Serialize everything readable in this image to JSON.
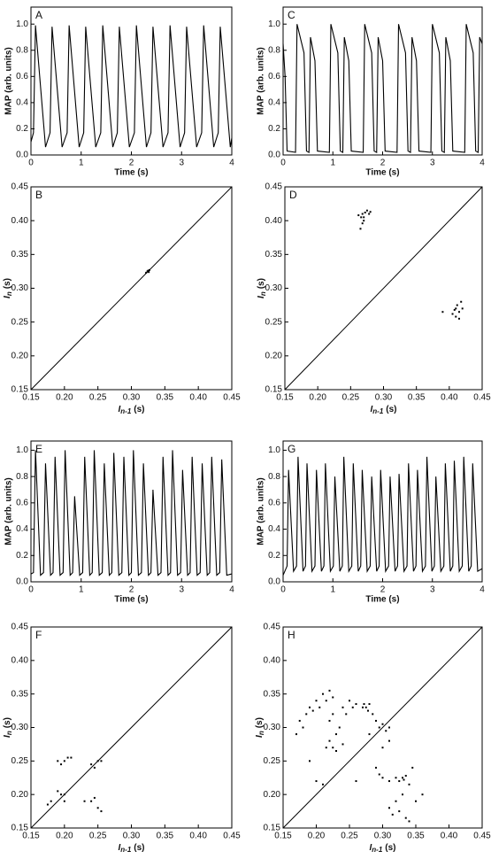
{
  "chart_data": [
    {
      "type": "line",
      "label": "A",
      "xlabel": "Time (s)",
      "ylabel": "MAP (arb. units)",
      "color": "#000000",
      "xlim": [
        0,
        4
      ],
      "ylim": [
        0,
        1.13
      ],
      "xticks": [
        0,
        1,
        2,
        3,
        4
      ],
      "yticks": [
        {
          "value": 0,
          "label": "0.0"
        },
        {
          "value": 0.2,
          "label": "0.2"
        },
        {
          "value": 0.4,
          "label": "0.4"
        },
        {
          "value": 0.6,
          "label": "0.6"
        },
        {
          "value": 0.8,
          "label": "0.8"
        },
        {
          "value": 1,
          "label": "1.0"
        }
      ],
      "x": [
        0,
        0.05,
        0.09,
        0.29,
        0.38,
        0.42,
        0.62,
        0.72,
        0.76,
        0.96,
        1.05,
        1.09,
        1.29,
        1.39,
        1.43,
        1.63,
        1.72,
        1.76,
        1.96,
        2.06,
        2.1,
        2.3,
        2.39,
        2.43,
        2.63,
        2.73,
        2.77,
        2.97,
        3.06,
        3.1,
        3.3,
        3.4,
        3.44,
        3.64,
        3.73,
        3.77,
        3.97,
        4.0
      ],
      "values": [
        0.1,
        0.17,
        0.99,
        0.06,
        0.17,
        0.98,
        0.06,
        0.17,
        0.99,
        0.06,
        0.17,
        0.98,
        0.06,
        0.17,
        0.99,
        0.06,
        0.17,
        0.98,
        0.06,
        0.17,
        0.99,
        0.06,
        0.17,
        0.98,
        0.06,
        0.17,
        0.99,
        0.06,
        0.17,
        0.98,
        0.06,
        0.17,
        0.99,
        0.06,
        0.17,
        0.98,
        0.06,
        0.13
      ]
    },
    {
      "type": "scatter",
      "label": "B",
      "identity_line": true,
      "color": "#000000",
      "xlabel": {
        "symbol": "I",
        "subscript": "n-1",
        "unit": "(s)"
      },
      "ylabel": {
        "symbol": "I",
        "subscript": "n",
        "unit": "(s)"
      },
      "xlim": [
        0.15,
        0.45
      ],
      "ylim": [
        0.15,
        0.45
      ],
      "xticks": [
        0.15,
        {
          "value": 0.2,
          "label": "0.20"
        },
        0.25,
        {
          "value": 0.3,
          "label": "0.30"
        },
        0.35,
        {
          "value": 0.4,
          "label": "0.40"
        },
        0.45
      ],
      "yticks": [
        0.15,
        {
          "value": 0.2,
          "label": "0.20"
        },
        0.25,
        {
          "value": 0.3,
          "label": "0.30"
        },
        0.35,
        {
          "value": 0.4,
          "label": "0.40"
        },
        0.45
      ],
      "x": [
        0.322,
        0.324,
        0.325,
        0.327,
        0.326
      ],
      "values": [
        0.323,
        0.325,
        0.326,
        0.327,
        0.324
      ]
    },
    {
      "type": "line",
      "label": "C",
      "xlabel": "Time (s)",
      "ylabel": "MAP (arb. units)",
      "color": "#000000",
      "xlim": [
        0,
        4
      ],
      "ylim": [
        0,
        1.13
      ],
      "xticks": [
        0,
        1,
        2,
        3,
        4
      ],
      "yticks": [
        {
          "value": 0,
          "label": "0.0"
        },
        {
          "value": 0.2,
          "label": "0.2"
        },
        {
          "value": 0.4,
          "label": "0.4"
        },
        {
          "value": 0.6,
          "label": "0.6"
        },
        {
          "value": 0.8,
          "label": "0.8"
        },
        {
          "value": 1,
          "label": "1.0"
        }
      ],
      "x": [
        0,
        0.04,
        0.08,
        0.25,
        0.28,
        0.42,
        0.47,
        0.52,
        0.55,
        0.64,
        0.69,
        0.93,
        0.96,
        1.1,
        1.15,
        1.2,
        1.23,
        1.32,
        1.37,
        1.61,
        1.64,
        1.78,
        1.83,
        1.88,
        1.91,
        2.0,
        2.05,
        2.29,
        2.32,
        2.46,
        2.51,
        2.56,
        2.59,
        2.68,
        2.73,
        2.97,
        3.0,
        3.14,
        3.19,
        3.24,
        3.27,
        3.36,
        3.41,
        3.65,
        3.68,
        3.82,
        3.87,
        3.92,
        3.95,
        4.0
      ],
      "values": [
        0.85,
        0.6,
        0.03,
        0.02,
        1.0,
        0.78,
        0.03,
        0.02,
        0.9,
        0.72,
        0.03,
        0.02,
        1.0,
        0.78,
        0.03,
        0.02,
        0.9,
        0.72,
        0.03,
        0.02,
        1.0,
        0.78,
        0.03,
        0.02,
        0.9,
        0.72,
        0.03,
        0.02,
        1.0,
        0.78,
        0.03,
        0.02,
        0.9,
        0.72,
        0.03,
        0.02,
        1.0,
        0.78,
        0.03,
        0.02,
        0.9,
        0.72,
        0.03,
        0.02,
        1.0,
        0.78,
        0.03,
        0.02,
        0.9,
        0.85
      ]
    },
    {
      "type": "scatter",
      "label": "D",
      "identity_line": true,
      "color": "#000000",
      "xlabel": {
        "symbol": "I",
        "subscript": "n-1",
        "unit": "(s)"
      },
      "ylabel": {
        "symbol": "I",
        "subscript": "n",
        "unit": "(s)"
      },
      "xlim": [
        0.15,
        0.45
      ],
      "ylim": [
        0.15,
        0.45
      ],
      "xticks": [
        0.15,
        {
          "value": 0.2,
          "label": "0.20"
        },
        0.25,
        {
          "value": 0.3,
          "label": "0.30"
        },
        0.35,
        {
          "value": 0.4,
          "label": "0.40"
        },
        0.45
      ],
      "yticks": [
        0.15,
        {
          "value": 0.2,
          "label": "0.20"
        },
        0.25,
        {
          "value": 0.3,
          "label": "0.30"
        },
        0.35,
        {
          "value": 0.4,
          "label": "0.40"
        },
        0.45
      ],
      "x": [
        0.262,
        0.266,
        0.268,
        0.27,
        0.272,
        0.275,
        0.278,
        0.28,
        0.265,
        0.268,
        0.27,
        0.39,
        0.405,
        0.41,
        0.412,
        0.415,
        0.418,
        0.42,
        0.41,
        0.415,
        0.408
      ],
      "values": [
        0.408,
        0.405,
        0.41,
        0.4,
        0.412,
        0.415,
        0.41,
        0.413,
        0.388,
        0.396,
        0.405,
        0.265,
        0.262,
        0.27,
        0.275,
        0.265,
        0.28,
        0.27,
        0.258,
        0.255,
        0.268
      ]
    },
    {
      "type": "line",
      "label": "E",
      "xlabel": "Time (s)",
      "ylabel": "MAP (arb. units)",
      "color": "#000000",
      "xlim": [
        0,
        4
      ],
      "ylim": [
        0,
        1.07
      ],
      "xticks": [
        0,
        1,
        2,
        3,
        4
      ],
      "yticks": [
        {
          "value": 0,
          "label": "0.0"
        },
        {
          "value": 0.2,
          "label": "0.2"
        },
        {
          "value": 0.4,
          "label": "0.4"
        },
        {
          "value": 0.6,
          "label": "0.6"
        },
        {
          "value": 0.8,
          "label": "0.8"
        },
        {
          "value": 1,
          "label": "1.0"
        }
      ],
      "x": [
        0,
        0.05,
        0.09,
        0.19,
        0.25,
        0.29,
        0.39,
        0.44,
        0.48,
        0.58,
        0.64,
        0.68,
        0.78,
        0.83,
        0.87,
        0.97,
        1.03,
        1.07,
        1.17,
        1.22,
        1.26,
        1.36,
        1.42,
        1.46,
        1.56,
        1.61,
        1.65,
        1.75,
        1.81,
        1.85,
        1.95,
        2.0,
        2.04,
        2.14,
        2.2,
        2.24,
        2.34,
        2.39,
        2.43,
        2.53,
        2.59,
        2.63,
        2.73,
        2.78,
        2.82,
        2.92,
        2.98,
        3.02,
        3.12,
        3.17,
        3.21,
        3.31,
        3.37,
        3.41,
        3.51,
        3.56,
        3.6,
        3.7,
        3.76,
        3.8,
        3.9,
        4.0
      ],
      "values": [
        0.06,
        0.07,
        1.0,
        0.05,
        0.07,
        0.9,
        0.05,
        0.07,
        0.95,
        0.05,
        0.07,
        1.0,
        0.05,
        0.07,
        0.65,
        0.05,
        0.07,
        0.95,
        0.05,
        0.07,
        1.0,
        0.05,
        0.07,
        0.9,
        0.05,
        0.07,
        0.98,
        0.05,
        0.07,
        0.95,
        0.05,
        0.07,
        1.0,
        0.05,
        0.07,
        0.9,
        0.05,
        0.07,
        0.7,
        0.05,
        0.07,
        0.95,
        0.05,
        0.07,
        1.0,
        0.05,
        0.07,
        0.85,
        0.05,
        0.07,
        0.95,
        0.05,
        0.07,
        0.9,
        0.05,
        0.07,
        0.95,
        0.05,
        0.07,
        0.93,
        0.05,
        0.06
      ]
    },
    {
      "type": "scatter",
      "label": "F",
      "identity_line": true,
      "color": "#000000",
      "xlabel": {
        "symbol": "I",
        "subscript": "n-1",
        "unit": "(s)"
      },
      "ylabel": {
        "symbol": "I",
        "subscript": "n",
        "unit": "(s)"
      },
      "xlim": [
        0.15,
        0.45
      ],
      "ylim": [
        0.15,
        0.45
      ],
      "xticks": [
        0.15,
        {
          "value": 0.2,
          "label": "0.20"
        },
        0.25,
        {
          "value": 0.3,
          "label": "0.30"
        },
        0.35,
        {
          "value": 0.4,
          "label": "0.40"
        },
        0.45
      ],
      "yticks": [
        0.15,
        {
          "value": 0.2,
          "label": "0.20"
        },
        0.25,
        {
          "value": 0.3,
          "label": "0.30"
        },
        0.35,
        {
          "value": 0.4,
          "label": "0.40"
        },
        0.45
      ],
      "x": [
        0.175,
        0.18,
        0.19,
        0.195,
        0.195,
        0.19,
        0.2,
        0.205,
        0.21,
        0.2,
        0.2,
        0.24,
        0.24,
        0.245,
        0.25,
        0.255,
        0.245,
        0.25,
        0.255,
        0.23
      ],
      "values": [
        0.185,
        0.19,
        0.205,
        0.2,
        0.245,
        0.25,
        0.25,
        0.255,
        0.255,
        0.2,
        0.19,
        0.19,
        0.245,
        0.24,
        0.25,
        0.25,
        0.195,
        0.18,
        0.175,
        0.19
      ]
    },
    {
      "type": "line",
      "label": "G",
      "xlabel": "Time (s)",
      "ylabel": "MAP (arb. units)",
      "color": "#000000",
      "xlim": [
        0,
        4
      ],
      "ylim": [
        0,
        1.07
      ],
      "xticks": [
        0,
        1,
        2,
        3,
        4
      ],
      "yticks": [
        {
          "value": 0,
          "label": "0.0"
        },
        {
          "value": 0.2,
          "label": "0.2"
        },
        {
          "value": 0.4,
          "label": "0.4"
        },
        {
          "value": 0.6,
          "label": "0.6"
        },
        {
          "value": 0.8,
          "label": "0.8"
        },
        {
          "value": 1,
          "label": "1.0"
        }
      ],
      "x": [
        0,
        0.08,
        0.11,
        0.21,
        0.27,
        0.3,
        0.4,
        0.45,
        0.48,
        0.58,
        0.64,
        0.67,
        0.77,
        0.82,
        0.85,
        0.95,
        1.01,
        1.04,
        1.14,
        1.19,
        1.22,
        1.32,
        1.38,
        1.41,
        1.51,
        1.56,
        1.59,
        1.69,
        1.75,
        1.78,
        1.88,
        1.93,
        1.96,
        2.06,
        2.12,
        2.15,
        2.25,
        2.3,
        2.33,
        2.43,
        2.49,
        2.52,
        2.62,
        2.67,
        2.7,
        2.8,
        2.86,
        2.89,
        2.99,
        3.04,
        3.07,
        3.17,
        3.23,
        3.26,
        3.36,
        3.41,
        3.44,
        3.54,
        3.6,
        3.63,
        3.73,
        3.78,
        3.81,
        3.91,
        4.0
      ],
      "values": [
        0.05,
        0.12,
        0.85,
        0.08,
        0.12,
        0.95,
        0.08,
        0.12,
        0.9,
        0.08,
        0.12,
        0.85,
        0.08,
        0.12,
        0.9,
        0.08,
        0.12,
        0.8,
        0.08,
        0.12,
        0.95,
        0.08,
        0.12,
        0.9,
        0.08,
        0.12,
        0.85,
        0.08,
        0.12,
        0.8,
        0.08,
        0.12,
        0.85,
        0.08,
        0.12,
        0.8,
        0.08,
        0.12,
        0.82,
        0.08,
        0.12,
        0.9,
        0.08,
        0.12,
        0.85,
        0.08,
        0.12,
        0.95,
        0.08,
        0.12,
        0.8,
        0.08,
        0.12,
        0.9,
        0.08,
        0.12,
        0.92,
        0.08,
        0.12,
        0.95,
        0.08,
        0.12,
        0.9,
        0.08,
        0.1
      ]
    },
    {
      "type": "scatter",
      "label": "H",
      "identity_line": true,
      "color": "#000000",
      "xlabel": {
        "symbol": "I",
        "subscript": "n-1",
        "unit": "(s)"
      },
      "ylabel": {
        "symbol": "I",
        "subscript": "n",
        "unit": "(s)"
      },
      "xlim": [
        0.15,
        0.45
      ],
      "ylim": [
        0.15,
        0.45
      ],
      "xticks": [
        0.15,
        {
          "value": 0.2,
          "label": "0.20"
        },
        0.25,
        {
          "value": 0.3,
          "label": "0.30"
        },
        0.35,
        {
          "value": 0.4,
          "label": "0.40"
        },
        0.45
      ],
      "yticks": [
        0.15,
        {
          "value": 0.2,
          "label": "0.20"
        },
        0.25,
        {
          "value": 0.3,
          "label": "0.30"
        },
        0.35,
        {
          "value": 0.4,
          "label": "0.40"
        },
        0.45
      ],
      "x": [
        0.17,
        0.175,
        0.18,
        0.185,
        0.19,
        0.195,
        0.2,
        0.205,
        0.21,
        0.215,
        0.22,
        0.225,
        0.215,
        0.22,
        0.225,
        0.23,
        0.235,
        0.22,
        0.225,
        0.23,
        0.24,
        0.245,
        0.25,
        0.255,
        0.26,
        0.27,
        0.272,
        0.275,
        0.278,
        0.28,
        0.285,
        0.29,
        0.295,
        0.3,
        0.305,
        0.31,
        0.3,
        0.31,
        0.29,
        0.295,
        0.3,
        0.31,
        0.32,
        0.325,
        0.33,
        0.332,
        0.335,
        0.34,
        0.33,
        0.32,
        0.31,
        0.315,
        0.325,
        0.335,
        0.34,
        0.35,
        0.36,
        0.2,
        0.21,
        0.19,
        0.24,
        0.28,
        0.26,
        0.345
      ],
      "values": [
        0.29,
        0.31,
        0.3,
        0.32,
        0.33,
        0.325,
        0.34,
        0.33,
        0.35,
        0.34,
        0.355,
        0.345,
        0.27,
        0.28,
        0.27,
        0.29,
        0.3,
        0.31,
        0.32,
        0.265,
        0.275,
        0.32,
        0.34,
        0.33,
        0.335,
        0.33,
        0.335,
        0.33,
        0.325,
        0.335,
        0.32,
        0.31,
        0.3,
        0.305,
        0.295,
        0.28,
        0.27,
        0.3,
        0.24,
        0.23,
        0.225,
        0.22,
        0.225,
        0.22,
        0.225,
        0.222,
        0.228,
        0.215,
        0.2,
        0.19,
        0.18,
        0.17,
        0.175,
        0.165,
        0.16,
        0.19,
        0.2,
        0.22,
        0.215,
        0.25,
        0.33,
        0.29,
        0.22,
        0.24
      ]
    }
  ]
}
